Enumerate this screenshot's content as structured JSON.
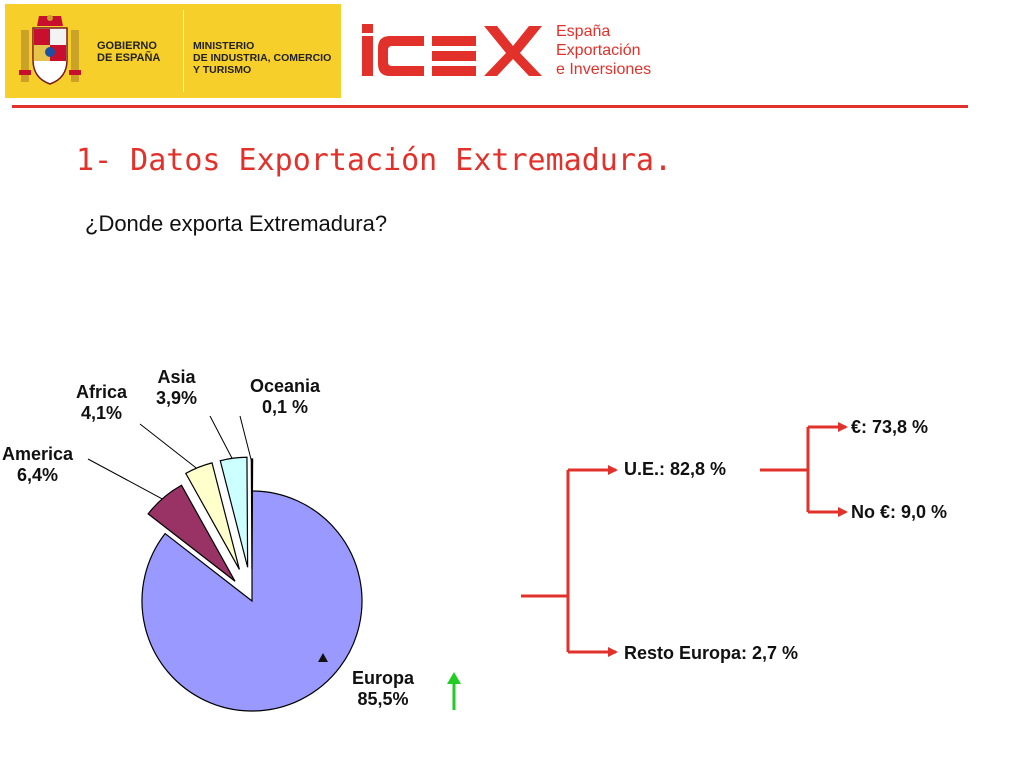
{
  "header": {
    "gov_line1": "GOBIERNO",
    "gov_line2": "DE ESPAÑA",
    "ministry_line1": "MINISTERIO",
    "ministry_line2": "DE INDUSTRIA, COMERCIO",
    "ministry_line3": "Y TURISMO",
    "icex_line1": "España",
    "icex_line2": "Exportación",
    "icex_line3": "e Inversiones",
    "brand_color": "#e2312a",
    "gov_bg_color": "#f7cf2a"
  },
  "slide": {
    "title": "1- Datos Exportación Extremadura.",
    "subtitle": "¿Donde exporta Extremadura?"
  },
  "chart_data": {
    "type": "pie",
    "title": "",
    "slices": [
      {
        "name": "Europa",
        "value": 85.5,
        "name_label": "Europa",
        "value_label": "85,5%",
        "color": "#9999ff"
      },
      {
        "name": "America",
        "value": 6.4,
        "name_label": "America",
        "value_label": "6,4%",
        "color": "#993366"
      },
      {
        "name": "Africa",
        "value": 4.1,
        "name_label": "Africa",
        "value_label": "4,1%",
        "color": "#ffffcc"
      },
      {
        "name": "Asia",
        "value": 3.9,
        "name_label": "Asia",
        "value_label": "3,9%",
        "color": "#ccffff"
      },
      {
        "name": "Oceania",
        "value": 0.1,
        "name_label": "Oceania",
        "value_label": "0,1 %",
        "color": "#660066"
      }
    ]
  },
  "breakdown": {
    "ue": "U.E.: 82,8 %",
    "euro": "€: 73,8 %",
    "no_euro": "No €: 9,0 %",
    "resto": "Resto Europa: 2,7 %",
    "arrow_color": "#e2312a"
  }
}
